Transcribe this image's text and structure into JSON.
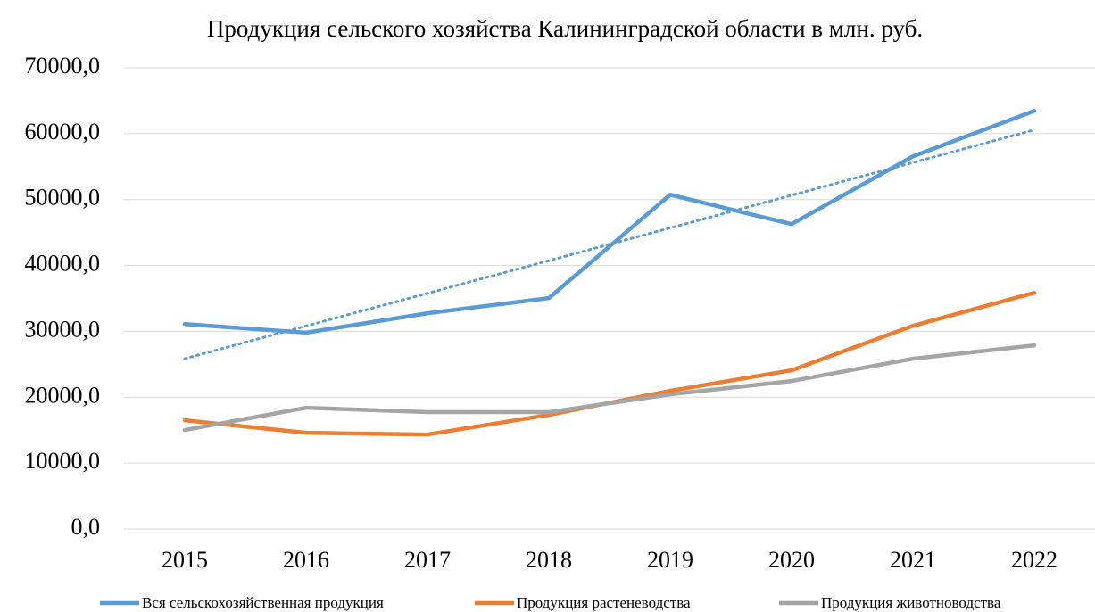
{
  "chart_data": {
    "type": "line",
    "title": "Продукция сельского хозяйства Калининградской области в млн. руб.",
    "categories": [
      "2015",
      "2016",
      "2017",
      "2018",
      "2019",
      "2020",
      "2021",
      "2022"
    ],
    "series": [
      {
        "name": "Вся сельскохозяйственная продукция",
        "color": "#5b9bd5",
        "values": [
          31100,
          29800,
          32750,
          35050,
          50740,
          46280,
          56560,
          63460
        ]
      },
      {
        "name": "Продукция растеневодства",
        "color": "#ed7d31",
        "values": [
          16500,
          14600,
          14340,
          17320,
          20970,
          24090,
          30850,
          35860
        ]
      },
      {
        "name": "Продукция животноводства",
        "color": "#a5a5a5",
        "values": [
          15020,
          18400,
          17730,
          17730,
          20430,
          22460,
          25850,
          27880
        ]
      }
    ],
    "trendline": true,
    "ylim": [
      0,
      70000
    ],
    "yticks": [
      {
        "value": 0,
        "label": "0,0"
      },
      {
        "value": 10000,
        "label": "10000,0"
      },
      {
        "value": 20000,
        "label": "20000,0"
      },
      {
        "value": 30000,
        "label": "30000,0"
      },
      {
        "value": 40000,
        "label": "40000,0"
      },
      {
        "value": 50000,
        "label": "50000,0"
      },
      {
        "value": 60000,
        "label": "60000,0"
      },
      {
        "value": 70000,
        "label": "70000,0"
      }
    ],
    "grid": true,
    "legend": "bottom"
  }
}
